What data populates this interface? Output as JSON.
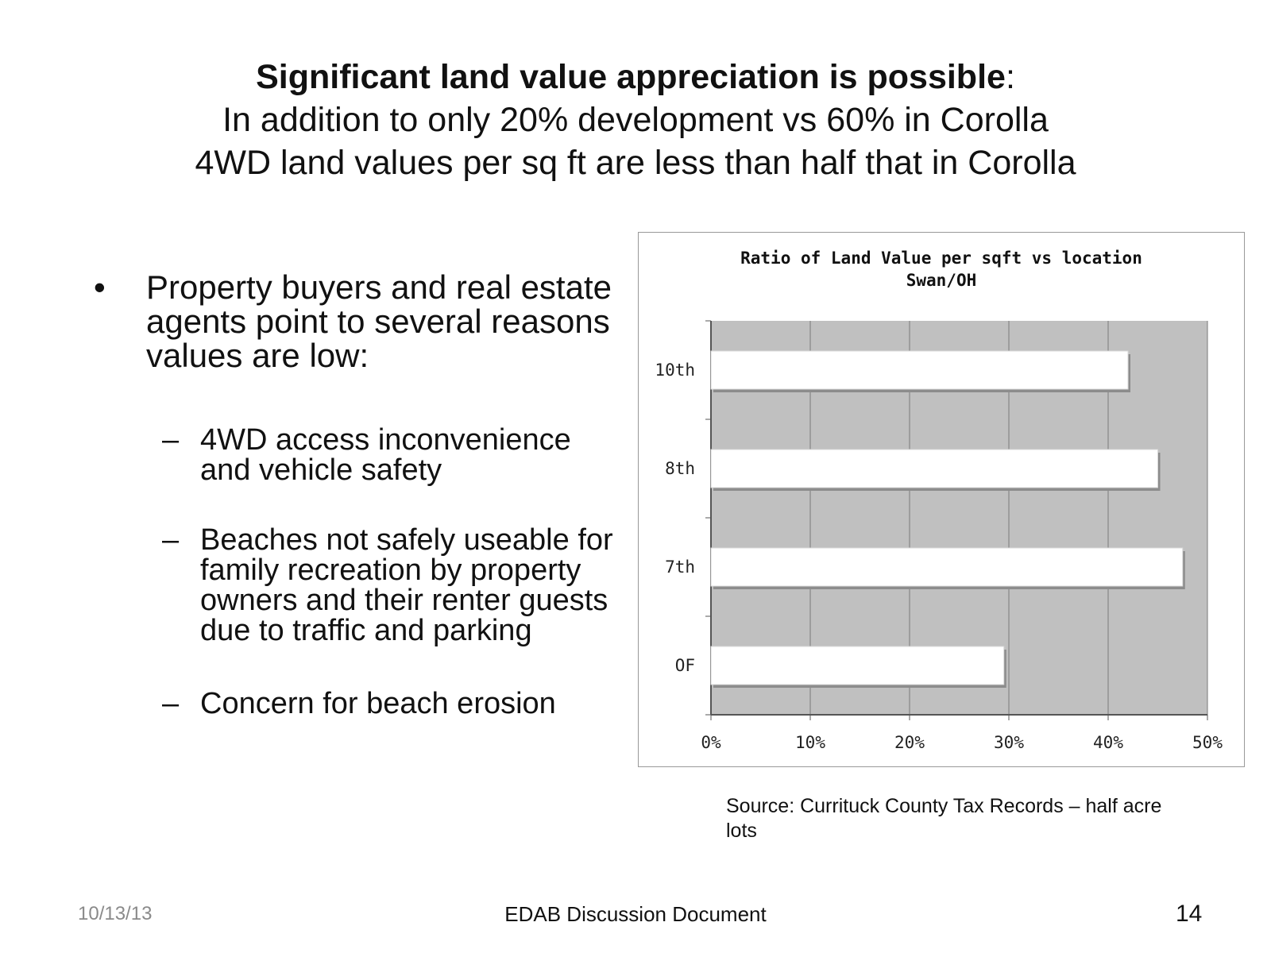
{
  "slide": {
    "title_bold": "Significant land value appreciation is possible",
    "title_colon": ":",
    "subtitle_1": "In addition to only 20% development vs 60% in Corolla",
    "subtitle_2": "4WD land values per sq ft are less than half that in Corolla"
  },
  "bullets": {
    "marker": "•",
    "main": "Property buyers and real estate agents point to several reasons values are low:",
    "dash": "–",
    "sub_1": "4WD access inconvenience and vehicle safety",
    "sub_2": "Beaches not safely useable for family recreation by property owners and their renter guests due to traffic and parking",
    "sub_3": "Concern for beach erosion"
  },
  "chart_data": {
    "type": "bar",
    "orientation": "horizontal",
    "title": "Ratio of  Land Value per sqft vs location",
    "subtitle": "Swan/OH",
    "categories": [
      "10th",
      "8th",
      "7th",
      "OF"
    ],
    "values": [
      0.42,
      0.45,
      0.475,
      0.295
    ],
    "xlim": [
      0,
      0.5
    ],
    "xticks": [
      "0%",
      "10%",
      "20%",
      "30%",
      "40%",
      "50%"
    ],
    "grid": true,
    "legend": "none",
    "colors": {
      "plot_bg": "#c0c0c0",
      "bar": "#ffffff",
      "bar_shadow": "#8c8c8c",
      "grid": "#7a7a7a"
    }
  },
  "source": "Source: Currituck County Tax Records – half acre lots",
  "footer": {
    "date": "10/13/13",
    "center": "EDAB Discussion Document",
    "page": "14"
  }
}
